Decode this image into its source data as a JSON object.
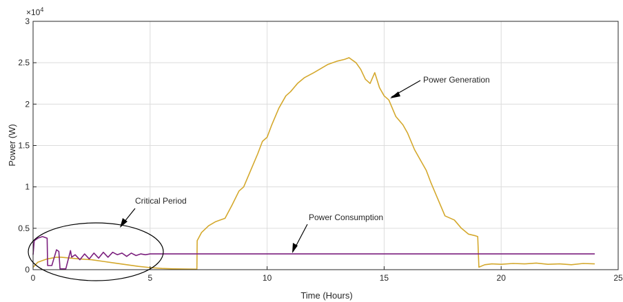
{
  "chart_data": {
    "type": "line",
    "xlabel": "Time (Hours)",
    "ylabel": "Power (W)",
    "y_exponent_label": "×10",
    "y_exponent_power": "4",
    "xlim": [
      0,
      25
    ],
    "ylim": [
      0,
      30000
    ],
    "x_ticks": [
      0,
      5,
      10,
      15,
      20,
      25
    ],
    "x_tick_labels": [
      "0",
      "5",
      "10",
      "15",
      "20",
      "25"
    ],
    "y_ticks": [
      0,
      5000,
      10000,
      15000,
      20000,
      25000,
      30000
    ],
    "y_tick_labels": [
      "0",
      "0.5",
      "1",
      "1.5",
      "2",
      "2.5",
      "3"
    ],
    "grid": true,
    "colors": {
      "generation": "#d4a82c",
      "consumption": "#7b1f7e",
      "axes": "#262626",
      "grid": "#dcdcdc"
    },
    "series": [
      {
        "key": "generation",
        "x": [
          0,
          0.2,
          0.4,
          0.6,
          0.8,
          1.0,
          1.2,
          1.4,
          1.6,
          1.8,
          2.0,
          2.5,
          3.0,
          3.5,
          4.0,
          4.5,
          5.0,
          5.5,
          6.0,
          6.5,
          7.0,
          7.01,
          7.2,
          7.5,
          7.8,
          8.0,
          8.2,
          8.5,
          8.8,
          9.0,
          9.3,
          9.6,
          9.8,
          10.0,
          10.2,
          10.5,
          10.8,
          11.0,
          11.3,
          11.6,
          12.0,
          12.3,
          12.6,
          13.0,
          13.3,
          13.5,
          13.8,
          14.0,
          14.2,
          14.4,
          14.6,
          14.8,
          15.0,
          15.2,
          15.5,
          15.8,
          16.0,
          16.3,
          16.6,
          16.8,
          17.0,
          17.3,
          17.6,
          18.0,
          18.3,
          18.6,
          18.9,
          19.0,
          19.05,
          19.3,
          19.6,
          20.0,
          20.5,
          21.0,
          21.5,
          22.0,
          22.5,
          23.0,
          23.5,
          24.0
        ],
        "y": [
          300,
          900,
          1100,
          1300,
          1400,
          1500,
          1500,
          1450,
          1400,
          1350,
          1300,
          1200,
          1000,
          800,
          600,
          400,
          250,
          150,
          100,
          80,
          60,
          3500,
          4500,
          5300,
          5800,
          6000,
          6200,
          7800,
          9500,
          10000,
          12000,
          14000,
          15500,
          16000,
          17500,
          19500,
          21000,
          21500,
          22500,
          23200,
          23800,
          24300,
          24800,
          25200,
          25400,
          25600,
          25000,
          24200,
          23000,
          22500,
          23800,
          22000,
          21000,
          20500,
          18500,
          17500,
          16500,
          14500,
          13000,
          12000,
          10500,
          8500,
          6500,
          6000,
          5000,
          4300,
          4100,
          4000,
          300,
          600,
          700,
          650,
          750,
          700,
          800,
          650,
          700,
          600,
          750,
          700
        ]
      },
      {
        "key": "consumption",
        "x": [
          0,
          0.05,
          0.2,
          0.4,
          0.6,
          0.62,
          0.8,
          1.0,
          1.1,
          1.15,
          1.4,
          1.6,
          1.65,
          1.8,
          2.0,
          2.2,
          2.4,
          2.6,
          2.8,
          3.0,
          3.2,
          3.4,
          3.6,
          3.8,
          4.0,
          4.2,
          4.4,
          4.6,
          4.8,
          5.0,
          5.5,
          6.0,
          8.0,
          10.0,
          12.0,
          14.0,
          16.0,
          18.0,
          20.0,
          22.0,
          24.0
        ],
        "y": [
          1800,
          3500,
          3800,
          4000,
          3800,
          500,
          500,
          2400,
          2200,
          100,
          100,
          2300,
          1500,
          1800,
          1200,
          1900,
          1300,
          2000,
          1400,
          2100,
          1500,
          2100,
          1800,
          2000,
          1600,
          2000,
          1700,
          1900,
          1800,
          1900,
          1900,
          1900,
          1900,
          1900,
          1900,
          1900,
          1900,
          1900,
          1900,
          1900,
          1900
        ]
      }
    ],
    "annotations": [
      {
        "text": "Power Generation"
      },
      {
        "text": "Power Consumption"
      },
      {
        "text": "Critical Period"
      }
    ]
  }
}
